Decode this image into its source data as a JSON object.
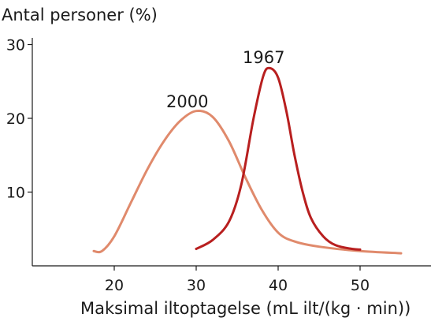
{
  "chart_data": {
    "type": "line",
    "xlabel": "Maksimal iltoptagelse (mL ilt/(kg · min))",
    "ylabel": "Antal personer (%)",
    "x_ticks": [
      20,
      30,
      40,
      50
    ],
    "y_ticks": [
      10,
      20,
      30
    ],
    "xlim": [
      10,
      60
    ],
    "ylim": [
      0,
      30
    ],
    "grid": false,
    "series": [
      {
        "name": "2000",
        "color": "#e08a6c",
        "points": [
          [
            17.5,
            2.0
          ],
          [
            18.5,
            2.0
          ],
          [
            20,
            4.0
          ],
          [
            22,
            8.5
          ],
          [
            24,
            13.0
          ],
          [
            26,
            16.8
          ],
          [
            28,
            19.6
          ],
          [
            30,
            21.0
          ],
          [
            32,
            20.2
          ],
          [
            34,
            16.9
          ],
          [
            36,
            12.0
          ],
          [
            38,
            7.6
          ],
          [
            40,
            4.5
          ],
          [
            42,
            3.3
          ],
          [
            45,
            2.6
          ],
          [
            50,
            2.0
          ],
          [
            55,
            1.7
          ]
        ]
      },
      {
        "name": "1967",
        "color": "#b81f1f",
        "points": [
          [
            30,
            2.3
          ],
          [
            32,
            3.5
          ],
          [
            34,
            6.0
          ],
          [
            35.5,
            11.0
          ],
          [
            37,
            20.0
          ],
          [
            38.2,
            25.8
          ],
          [
            39,
            26.8
          ],
          [
            40,
            25.5
          ],
          [
            41,
            21.0
          ],
          [
            42,
            15.0
          ],
          [
            43,
            10.0
          ],
          [
            44,
            6.5
          ],
          [
            45.5,
            4.0
          ],
          [
            47,
            2.8
          ],
          [
            49,
            2.3
          ],
          [
            50,
            2.2
          ]
        ]
      }
    ]
  }
}
